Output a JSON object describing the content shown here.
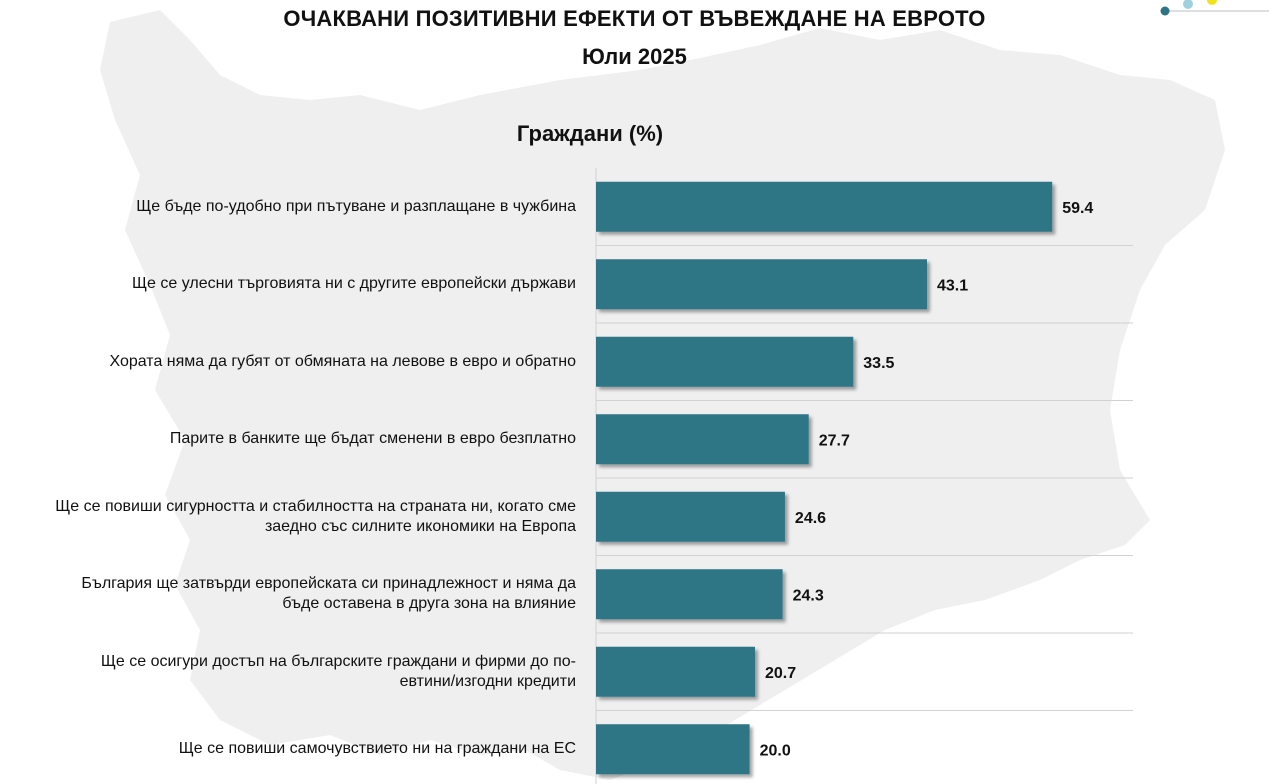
{
  "header": {
    "title": "ОЧАКВАНИ ПОЗИТИВНИ ЕФЕКТИ ОТ ВЪВЕЖДАНЕ НА ЕВРОТО",
    "date": "Юли 2025"
  },
  "colors": {
    "bar": "#2e7486",
    "gridline": "#d2d2d2",
    "map_background": "#efefef",
    "logo_dots": [
      "#2e7486",
      "#9fd1dc",
      "#f2e21a"
    ]
  },
  "chart_data": {
    "type": "bar",
    "orientation": "horizontal",
    "title": "Граждани (%)",
    "categories": [
      "Ще бъде по-удобно при пътуване и разплащане в чужбина",
      "Ще се улесни търговията ни с другите европейски държави",
      "Хората няма да губят от обмяната на левове в евро и обратно",
      "Парите в банките ще бъдат сменени в евро безплатно",
      "Ще се повиши сигурността и стабилността на страната ни, когато сме заедно със силните икономики на Европа",
      "България ще затвърди европейската си принадлежност и няма да бъде оставена в друга зона на влияние",
      "Ще се осигури достъп на българските граждани и фирми до по-евтини/изгодни кредити",
      "Ще се повиши самочувствието ни на граждани на ЕС"
    ],
    "label_lines": [
      [
        "Ще бъде по-удобно при пътуване и разплащане в чужбина"
      ],
      [
        "Ще се улесни търговията ни с другите европейски държави"
      ],
      [
        "Хората няма да губят от обмяната на левове в евро и обратно"
      ],
      [
        "Парите в банките ще бъдат сменени в евро безплатно"
      ],
      [
        "Ще се повиши сигурността и стабилността на страната ни, когато сме",
        "заедно със силните икономики на Европа"
      ],
      [
        "България ще затвърди европейската си принадлежност и няма да",
        "бъде оставена в друга зона на влияние"
      ],
      [
        "Ще се осигури достъп на българските граждани и фирми до по-",
        "евтини/изгодни кредити"
      ],
      [
        "Ще се повиши самочувствието ни на граждани на ЕС"
      ]
    ],
    "values": [
      59.4,
      43.1,
      33.5,
      27.7,
      24.6,
      24.3,
      20.7,
      20.0
    ],
    "value_labels": [
      "59.4",
      "43.1",
      "33.5",
      "27.7",
      "24.6",
      "24.3",
      "20.7",
      "20.0"
    ],
    "xlim": [
      0,
      70
    ],
    "grid": "horizontal separators between categories",
    "legend": "none"
  }
}
